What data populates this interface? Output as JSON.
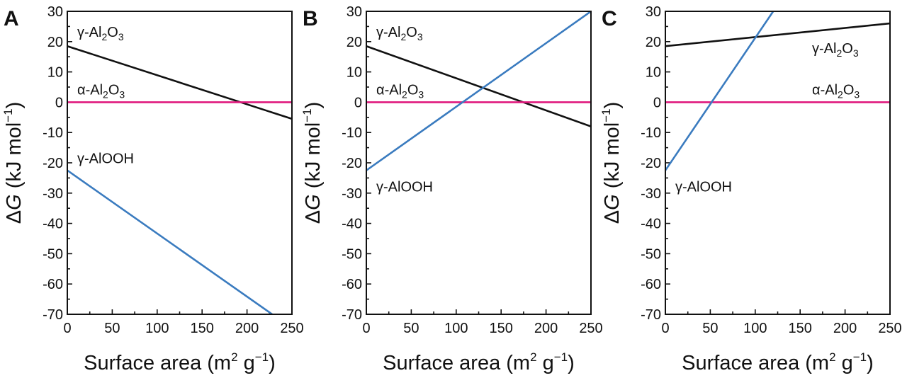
{
  "chart_data": [
    {
      "type": "line",
      "panel": "A",
      "xlabel": "Surface area (m2 g-1)",
      "xlabel_parts": {
        "main": "Surface area (m",
        "sup1": "2",
        "mid": " g",
        "sup2": "−1",
        "end": ")"
      },
      "ylabel": "ΔG (kJ mol-1)",
      "ylabel_parts": {
        "delta": "Δ",
        "var": "G",
        "main": " (kJ mol",
        "sup": "−1",
        "end": ")"
      },
      "xlim": [
        0,
        250
      ],
      "ylim": [
        -70,
        30
      ],
      "xticks": [
        "0",
        "50",
        "100",
        "150",
        "200",
        "250"
      ],
      "yticks": [
        "30",
        "20",
        "10",
        "0",
        "-10",
        "-20",
        "-30",
        "-40",
        "-50",
        "-60",
        "-70"
      ],
      "series": [
        {
          "name": "γ-Al2O3",
          "label_parts": {
            "pre": "γ-Al",
            "s1": "2",
            "mid": "O",
            "s2": "3"
          },
          "color": "#111111",
          "x": [
            0,
            250
          ],
          "y": [
            18.5,
            -5.5
          ],
          "label_at": "top-left"
        },
        {
          "name": "α-Al2O3",
          "label_parts": {
            "pre": "α-Al",
            "s1": "2",
            "mid": "O",
            "s2": "3"
          },
          "color": "#e0197d",
          "x": [
            0,
            250
          ],
          "y": [
            0,
            0
          ],
          "label_at": "above-line-left"
        },
        {
          "name": "γ-AlOOH",
          "label_parts": {
            "pre": "γ-AlOOH",
            "s1": "",
            "mid": "",
            "s2": ""
          },
          "color": "#3a7bbf",
          "x": [
            0,
            228
          ],
          "y": [
            -22.5,
            -70
          ],
          "label_at": "above-start"
        }
      ]
    },
    {
      "type": "line",
      "panel": "B",
      "xlabel": "Surface area (m2 g-1)",
      "xlabel_parts": {
        "main": "Surface area (m",
        "sup1": "2",
        "mid": " g",
        "sup2": "−1",
        "end": ")"
      },
      "ylabel": "ΔG (kJ mol-1)",
      "ylabel_parts": {
        "delta": "Δ",
        "var": "G",
        "main": " (kJ mol",
        "sup": "−1",
        "end": ")"
      },
      "xlim": [
        0,
        250
      ],
      "ylim": [
        -70,
        30
      ],
      "xticks": [
        "0",
        "50",
        "100",
        "150",
        "200",
        "250"
      ],
      "yticks": [
        "30",
        "20",
        "10",
        "0",
        "-10",
        "-20",
        "-30",
        "-40",
        "-50",
        "-60",
        "-70"
      ],
      "series": [
        {
          "name": "γ-Al2O3",
          "label_parts": {
            "pre": "γ-Al",
            "s1": "2",
            "mid": "O",
            "s2": "3"
          },
          "color": "#111111",
          "x": [
            0,
            250
          ],
          "y": [
            18.5,
            -8
          ],
          "label_at": "top-left"
        },
        {
          "name": "α-Al2O3",
          "label_parts": {
            "pre": "α-Al",
            "s1": "2",
            "mid": "O",
            "s2": "3"
          },
          "color": "#e0197d",
          "x": [
            0,
            250
          ],
          "y": [
            0,
            0
          ],
          "label_at": "above-line-left"
        },
        {
          "name": "γ-AlOOH",
          "label_parts": {
            "pre": "γ-AlOOH",
            "s1": "",
            "mid": "",
            "s2": ""
          },
          "color": "#3a7bbf",
          "x": [
            0,
            250
          ],
          "y": [
            -22.5,
            30
          ],
          "label_at": "below-start"
        }
      ]
    },
    {
      "type": "line",
      "panel": "C",
      "xlabel": "Surface area (m2 g-1)",
      "xlabel_parts": {
        "main": "Surface area (m",
        "sup1": "2",
        "mid": " g",
        "sup2": "−1",
        "end": ")"
      },
      "ylabel": "ΔG (kJ mol-1)",
      "ylabel_parts": {
        "delta": "Δ",
        "var": "G",
        "main": " (kJ mol",
        "sup": "−1",
        "end": ")"
      },
      "xlim": [
        0,
        250
      ],
      "ylim": [
        -70,
        30
      ],
      "xticks": [
        "0",
        "50",
        "100",
        "150",
        "200",
        "250"
      ],
      "yticks": [
        "30",
        "20",
        "10",
        "0",
        "-10",
        "-20",
        "-30",
        "-40",
        "-50",
        "-60",
        "-70"
      ],
      "series": [
        {
          "name": "γ-Al2O3",
          "label_parts": {
            "pre": "γ-Al",
            "s1": "2",
            "mid": "O",
            "s2": "3"
          },
          "color": "#111111",
          "x": [
            0,
            250
          ],
          "y": [
            18.5,
            26
          ],
          "label_at": "below-right"
        },
        {
          "name": "α-Al2O3",
          "label_parts": {
            "pre": "α-Al",
            "s1": "2",
            "mid": "O",
            "s2": "3"
          },
          "color": "#e0197d",
          "x": [
            0,
            250
          ],
          "y": [
            0,
            0
          ],
          "label_at": "above-line-right"
        },
        {
          "name": "γ-AlOOH",
          "label_parts": {
            "pre": "γ-AlOOH",
            "s1": "",
            "mid": "",
            "s2": ""
          },
          "color": "#3a7bbf",
          "x": [
            0,
            120
          ],
          "y": [
            -22.5,
            30
          ],
          "label_at": "below-start"
        }
      ]
    }
  ]
}
